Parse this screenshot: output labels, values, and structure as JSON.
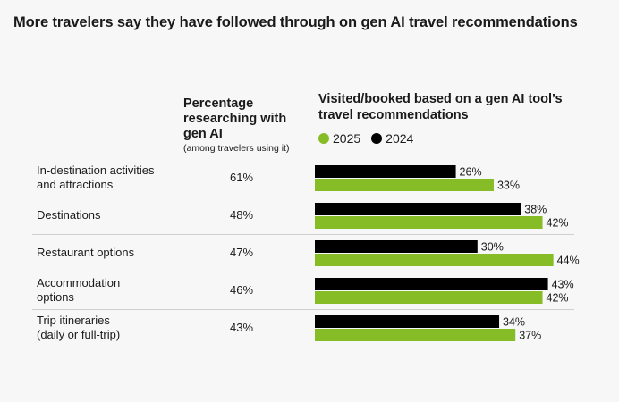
{
  "title": "More travelers say they have followed through on gen AI travel recommendations",
  "column_headers": {
    "researching": "Percentage researching with gen AI",
    "researching_sub": "(among travelers using it)",
    "booked": "Visited/booked based on a gen AI tool’s travel recommendations"
  },
  "legend": [
    {
      "name": "2025",
      "color": "#86bc25"
    },
    {
      "name": "2024",
      "color": "#000000"
    }
  ],
  "chart_data": {
    "type": "bar",
    "orientation": "horizontal",
    "title": "More travelers say they have followed through on gen AI travel recommendations",
    "categories": [
      [
        "In-destination activities",
        "and attractions"
      ],
      [
        "Destinations"
      ],
      [
        "Restaurant options"
      ],
      [
        "Accommodation",
        "options"
      ],
      [
        "Trip itineraries",
        "(daily or full-trip)"
      ]
    ],
    "researching_pct": [
      "61%",
      "48%",
      "47%",
      "46%",
      "43%"
    ],
    "series": [
      {
        "name": "2024",
        "color": "#000000",
        "values": [
          26,
          38,
          30,
          43,
          34
        ]
      },
      {
        "name": "2025",
        "color": "#86bc25",
        "values": [
          33,
          42,
          44,
          42,
          37
        ]
      }
    ],
    "xlim": [
      0,
      50
    ],
    "unit": "%"
  }
}
